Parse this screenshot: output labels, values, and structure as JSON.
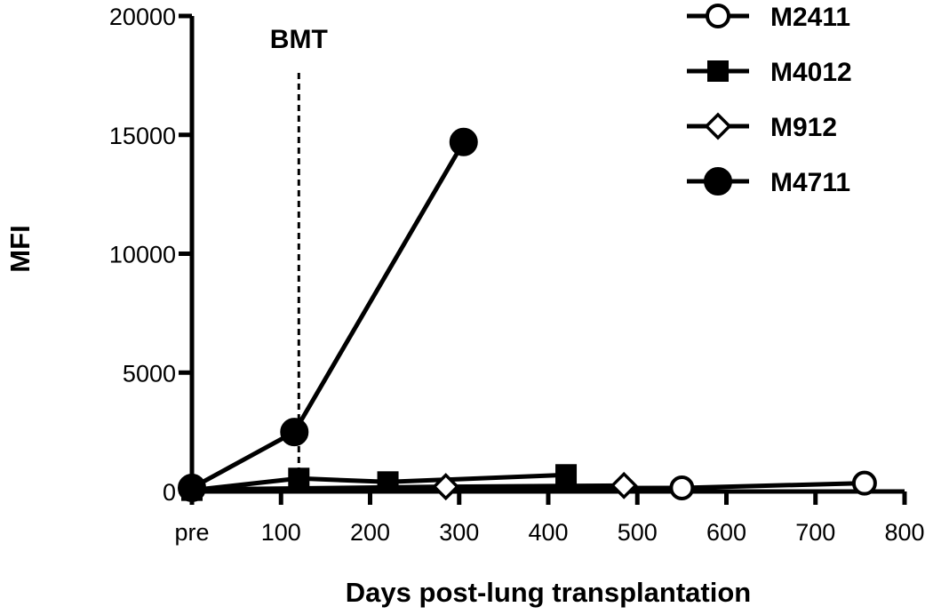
{
  "chart_data": {
    "type": "line",
    "xlabel": "Days post-lung transplantation",
    "ylabel": "MFI",
    "xlim": [
      0,
      800
    ],
    "ylim": [
      0,
      20000
    ],
    "x_ticks": [
      {
        "value": 0,
        "label": "pre"
      },
      {
        "value": 100,
        "label": "100"
      },
      {
        "value": 200,
        "label": "200"
      },
      {
        "value": 300,
        "label": "300"
      },
      {
        "value": 400,
        "label": "400"
      },
      {
        "value": 500,
        "label": "500"
      },
      {
        "value": 600,
        "label": "600"
      },
      {
        "value": 700,
        "label": "700"
      },
      {
        "value": 800,
        "label": "800"
      }
    ],
    "y_ticks": [
      {
        "value": 0,
        "label": "0"
      },
      {
        "value": 5000,
        "label": "5000"
      },
      {
        "value": 10000,
        "label": "10000"
      },
      {
        "value": 15000,
        "label": "15000"
      },
      {
        "value": 20000,
        "label": "20000"
      }
    ],
    "grid": false,
    "legend_position": "top-right",
    "annotation": {
      "label": "BMT",
      "x": 120
    },
    "series": [
      {
        "name": "M2411",
        "marker": "circle-open",
        "points": [
          [
            0,
            100
          ],
          [
            550,
            150
          ],
          [
            755,
            350
          ]
        ]
      },
      {
        "name": "M4012",
        "marker": "square-filled",
        "points": [
          [
            0,
            50
          ],
          [
            120,
            550
          ],
          [
            220,
            400
          ],
          [
            420,
            700
          ]
        ]
      },
      {
        "name": "M912",
        "marker": "diamond-open",
        "points": [
          [
            0,
            80
          ],
          [
            285,
            200
          ],
          [
            485,
            250
          ]
        ]
      },
      {
        "name": "M4711",
        "marker": "circle-filled",
        "points": [
          [
            0,
            150
          ],
          [
            115,
            2500
          ],
          [
            305,
            14700
          ]
        ]
      }
    ]
  }
}
